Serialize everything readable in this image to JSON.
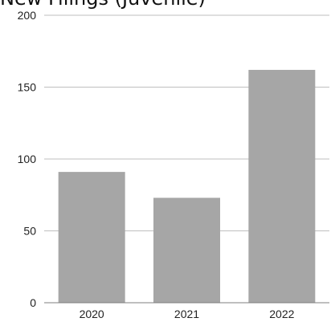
{
  "chart_data": {
    "type": "bar",
    "title": "New Filings (Juvenile)",
    "categories": [
      "2020",
      "2021",
      "2022"
    ],
    "values": [
      91,
      73,
      162
    ],
    "ylim": [
      0,
      200
    ],
    "yticks": [
      0,
      50,
      100,
      150,
      200
    ],
    "grid": true,
    "xlabel": "",
    "ylabel": "",
    "colors": {
      "bar": "#a6a6a6",
      "grid": "#bfbfbf",
      "axis": "#7f7f7f"
    }
  }
}
